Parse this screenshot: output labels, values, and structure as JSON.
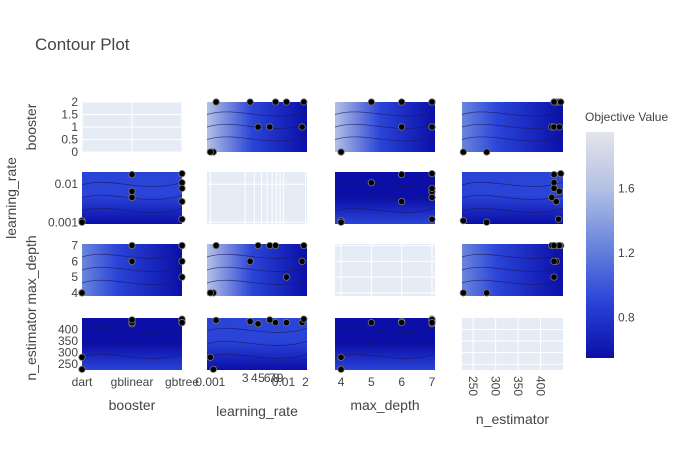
{
  "chart_data": {
    "type": "contour",
    "title": "Contour Plot",
    "params": [
      "booster",
      "learning_rate",
      "max_depth",
      "n_estimator"
    ],
    "axes": {
      "booster": {
        "kind": "categorical",
        "categories": [
          "dart",
          "gblinear",
          "gbtree"
        ],
        "range": [
          0,
          2
        ],
        "ticks": [
          {
            "v": 0,
            "t": "dart"
          },
          {
            "v": 1,
            "t": "gblinear"
          },
          {
            "v": 2,
            "t": "gbtree"
          }
        ],
        "yticks": [
          {
            "v": 0,
            "t": "0"
          },
          {
            "v": 0.5,
            "t": "0.5"
          },
          {
            "v": 1,
            "t": "1"
          },
          {
            "v": 1.5,
            "t": "1.5"
          },
          {
            "v": 2,
            "t": "2"
          }
        ]
      },
      "learning_rate": {
        "kind": "log",
        "range": [
          0.0009,
          0.021
        ],
        "ticks": [
          {
            "v": 0.001,
            "t": "0.001"
          },
          {
            "v": 0.003,
            "t": "3"
          },
          {
            "v": 0.004,
            "t": "4"
          },
          {
            "v": 0.005,
            "t": "5"
          },
          {
            "v": 0.006,
            "t": "6"
          },
          {
            "v": 0.007,
            "t": "7"
          },
          {
            "v": 0.008,
            "t": "8"
          },
          {
            "v": 0.009,
            "t": "9"
          },
          {
            "v": 0.01,
            "t": "0.01"
          },
          {
            "v": 0.02,
            "t": "2"
          }
        ],
        "yticks": [
          {
            "v": 0.001,
            "t": "0.001"
          },
          {
            "v": 0.01,
            "t": "0.01"
          }
        ]
      },
      "max_depth": {
        "kind": "linear",
        "range": [
          3.8,
          7.1
        ],
        "ticks": [
          {
            "v": 4,
            "t": "4"
          },
          {
            "v": 5,
            "t": "5"
          },
          {
            "v": 6,
            "t": "6"
          },
          {
            "v": 7,
            "t": "7"
          }
        ],
        "yticks": [
          {
            "v": 4,
            "t": "4"
          },
          {
            "v": 5,
            "t": "5"
          },
          {
            "v": 6,
            "t": "6"
          },
          {
            "v": 7,
            "t": "7"
          }
        ]
      },
      "n_estimator": {
        "kind": "linear",
        "range": [
          225,
          450
        ],
        "ticks": [
          {
            "v": 250,
            "t": "250"
          },
          {
            "v": 300,
            "t": "300"
          },
          {
            "v": 350,
            "t": "350"
          },
          {
            "v": 400,
            "t": "400"
          }
        ],
        "yticks": [
          {
            "v": 250,
            "t": "250"
          },
          {
            "v": 300,
            "t": "300"
          },
          {
            "v": 350,
            "t": "350"
          },
          {
            "v": 400,
            "t": "400"
          }
        ]
      }
    },
    "trials": [
      {
        "booster": 2,
        "learning_rate": 0.0012,
        "max_depth": 7,
        "n_estimator": 440
      },
      {
        "booster": 2,
        "learning_rate": 0.0035,
        "max_depth": 6,
        "n_estimator": 435
      },
      {
        "booster": 1,
        "learning_rate": 0.0045,
        "max_depth": 7,
        "n_estimator": 425
      },
      {
        "booster": 1,
        "learning_rate": 0.018,
        "max_depth": 6,
        "n_estimator": 430
      },
      {
        "booster": 0,
        "learning_rate": 0.0011,
        "max_depth": 4,
        "n_estimator": 228
      },
      {
        "booster": 2,
        "learning_rate": 0.019,
        "max_depth": 7,
        "n_estimator": 445
      },
      {
        "booster": 0,
        "learning_rate": 0.001,
        "max_depth": 4,
        "n_estimator": 280
      },
      {
        "booster": 2,
        "learning_rate": 0.011,
        "max_depth": 5,
        "n_estimator": 430
      },
      {
        "booster": 1,
        "learning_rate": 0.0065,
        "max_depth": 7,
        "n_estimator": 442
      },
      {
        "booster": 2,
        "learning_rate": 0.0078,
        "max_depth": 7,
        "n_estimator": 430
      }
    ],
    "colorbar": {
      "title": "Objective Value",
      "min": 0.55,
      "max": 1.95,
      "ticks": [
        {
          "v": 0.8,
          "t": "0.8"
        },
        {
          "v": 1.2,
          "t": "1.2"
        },
        {
          "v": 1.6,
          "t": "1.6"
        }
      ],
      "colors": [
        "#0b0fa8",
        "#2a44d8",
        "#6a86dc",
        "#b4c1e4",
        "#e4e4ea"
      ]
    },
    "grid": true,
    "legend": "right"
  }
}
